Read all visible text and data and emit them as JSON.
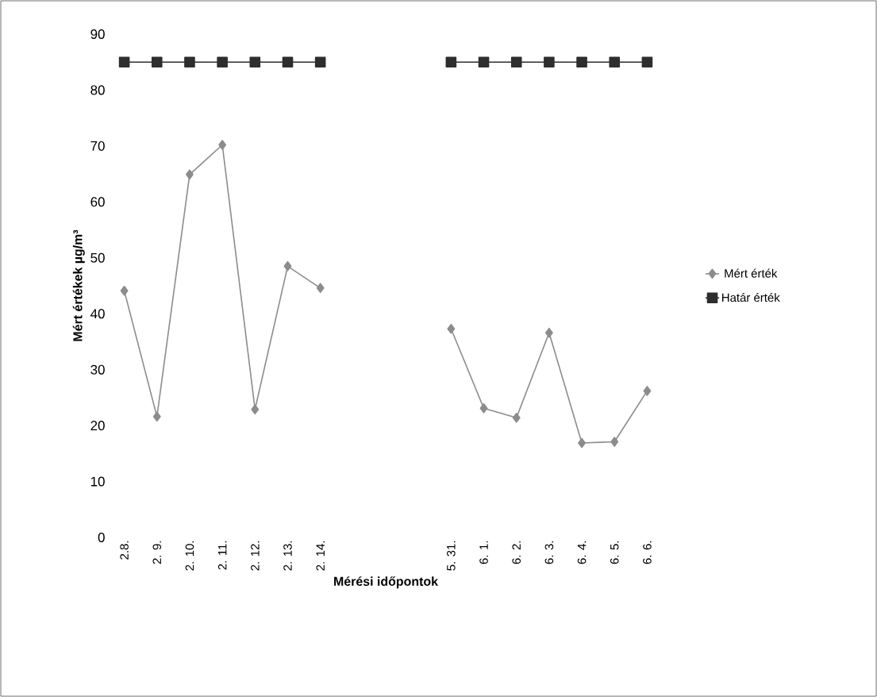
{
  "chart_data": {
    "type": "line",
    "xlabel": "Mérési időpontok",
    "ylabel": "Mért értékek µg/m³",
    "categories": [
      "2.8.",
      "2. 9.",
      "2. 10.",
      "2. 11.",
      "2. 12.",
      "2. 13.",
      "2. 14.",
      null,
      null,
      null,
      "5. 31.",
      "6. 1.",
      "6. 2.",
      "6. 3.",
      "6. 4.",
      "6. 5.",
      "6. 6."
    ],
    "series": [
      {
        "name": "Mért érték",
        "color": "#8c8c8c",
        "marker": "diamond",
        "values": [
          44.1,
          21.6,
          64.9,
          70.2,
          22.9,
          48.5,
          44.6,
          null,
          null,
          null,
          37.3,
          23.1,
          21.4,
          36.6,
          16.9,
          17.1,
          26.2
        ]
      },
      {
        "name": "Határ érték",
        "color": "#2e2e2e",
        "marker": "square",
        "values": [
          85,
          85,
          85,
          85,
          85,
          85,
          85,
          null,
          null,
          null,
          85,
          85,
          85,
          85,
          85,
          85,
          85
        ]
      }
    ],
    "ylim": [
      0,
      90
    ],
    "yticks": [
      0,
      10,
      20,
      30,
      40,
      50,
      60,
      70,
      80,
      90
    ],
    "grid": false,
    "legend": "right",
    "line_style": "solid"
  }
}
